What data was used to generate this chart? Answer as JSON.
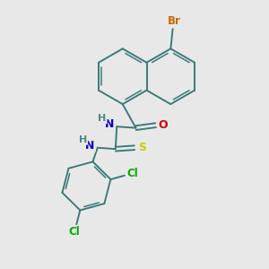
{
  "background_color": "#e8e8e8",
  "bond_color": "#3d7a7a",
  "atom_colors": {
    "Br": "#cc6600",
    "O": "#cc0000",
    "N": "#0000cc",
    "S": "#cccc00",
    "Cl": "#00aa00",
    "H": "#4a8a8a",
    "C": "#3d7a7a"
  },
  "figsize": [
    3.0,
    3.0
  ],
  "dpi": 100
}
